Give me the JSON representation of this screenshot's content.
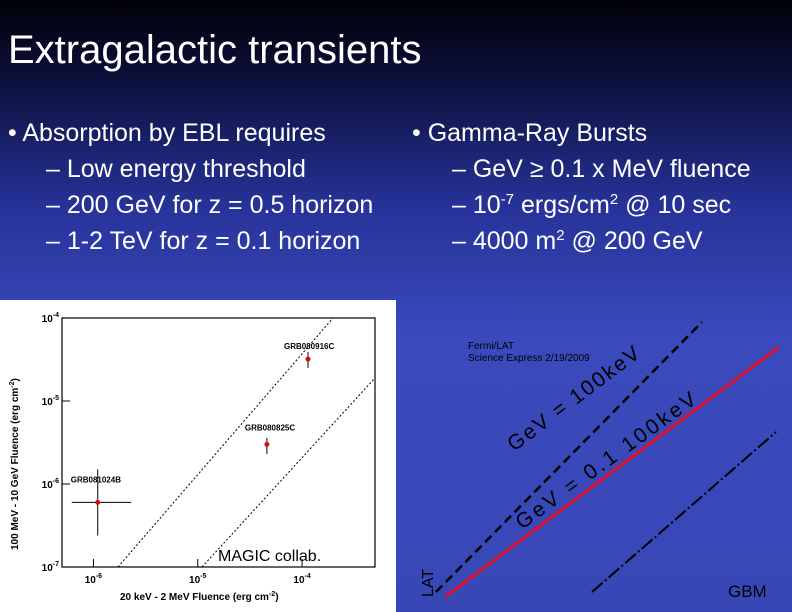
{
  "title": "Extragalactic transients",
  "left_column": {
    "heading": "• Absorption by EBL requires",
    "items": [
      "– Low energy threshold",
      "– 200 GeV for z = 0.5 horizon",
      "– 1-2 TeV for z = 0.1 horizon"
    ]
  },
  "right_column": {
    "heading": "• Gamma-Ray Bursts",
    "items": [
      [
        {
          "t": "– GeV ≥ 0.1 x MeV fluence"
        }
      ],
      [
        {
          "t": "– 10"
        },
        {
          "t": "-7",
          "sup": true
        },
        {
          "t": " ergs/cm"
        },
        {
          "t": "2",
          "sup": true
        },
        {
          "t": " @ 10 sec"
        }
      ],
      [
        {
          "t": "– 4000 m"
        },
        {
          "t": "2",
          "sup": true
        },
        {
          "t": " @ 200 GeV"
        }
      ]
    ]
  },
  "figure": {
    "chart_data": {
      "type": "scatter",
      "xscale": "log",
      "yscale": "log",
      "x_label": [
        "20 keV - 2 MeV   Fluence (erg cm",
        "-2",
        ")"
      ],
      "y_label": [
        "100 MeV - 10 GeV   Fluence (erg cm",
        "-2",
        ")"
      ],
      "xlim": [
        5e-07,
        0.0005
      ],
      "ylim": [
        1e-07,
        0.0001
      ],
      "xticks": [
        {
          "value": 1e-06,
          "label": "10",
          "exp": "-6"
        },
        {
          "value": 1e-05,
          "label": "10",
          "exp": "-5"
        },
        {
          "value": 0.0001,
          "label": "10",
          "exp": "-4"
        }
      ],
      "yticks": [
        {
          "value": 1e-07,
          "label": "10",
          "exp": "-7"
        },
        {
          "value": 1e-06,
          "label": "10",
          "exp": "-6"
        },
        {
          "value": 1e-05,
          "label": "10",
          "exp": "-5"
        },
        {
          "value": 0.0001,
          "label": "10",
          "exp": "-4"
        }
      ],
      "color": "#d01010",
      "points": [
        {
          "name": "GRB080916C",
          "x": 0.000114,
          "y": 3.2e-05,
          "y_err": [
            2.5e-05,
            3.9e-05
          ]
        },
        {
          "name": "GRB080825C",
          "x": 4.6e-05,
          "y": 3e-06,
          "y_err": [
            2.3e-06,
            3.6e-06
          ]
        },
        {
          "name": "GRB081024B",
          "x": 1.1e-06,
          "y": 6e-07,
          "x_err": [
            6.2e-07,
            2.3e-06
          ],
          "y_err": [
            2.4e-07,
            1.5e-06
          ]
        }
      ]
    }
  },
  "annotations": {
    "source": [
      "Fermi/LAT",
      "Science Express 2/19/2009"
    ],
    "magic": "MAGIC collab.",
    "lat": "LAT",
    "gbm": "GBM",
    "line_upper": "GeV = 100keV",
    "line_lower": "GeV = 0.1 100keV"
  }
}
